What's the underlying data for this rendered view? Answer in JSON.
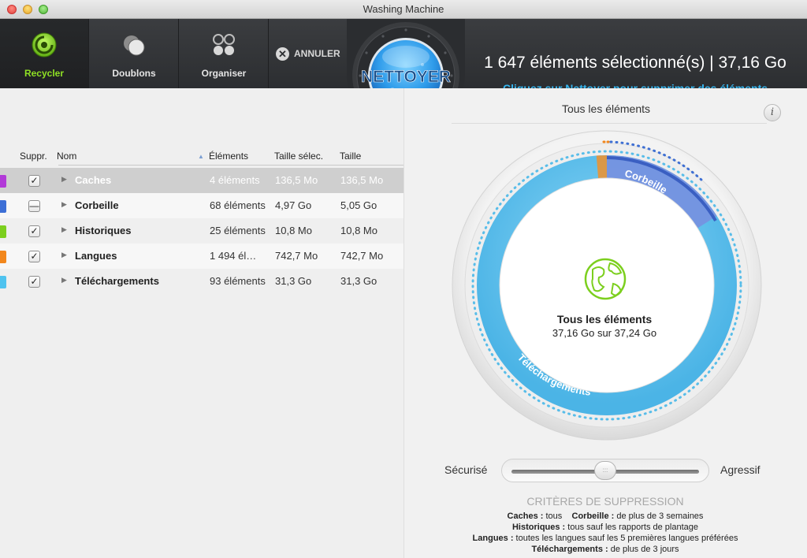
{
  "window": {
    "title": "Washing Machine"
  },
  "toolbar": {
    "tabs": [
      {
        "label": "Recycler",
        "icon": "recycle-icon",
        "active": true
      },
      {
        "label": "Doublons",
        "icon": "duplicates-icon",
        "active": false
      },
      {
        "label": "Organiser",
        "icon": "organize-icon",
        "active": false
      }
    ],
    "cancel_label": "ANNULER",
    "clean_label": "NETTOYER",
    "summary": "1 647 éléments sélectionné(s) | 37,16 Go",
    "hint": "Cliquez sur Nettoyer pour supprimer des éléments"
  },
  "table": {
    "headers": {
      "suppr": "Suppr.",
      "name": "Nom",
      "elements": "Éléments",
      "selected_size": "Taille sélec.",
      "size": "Taille"
    },
    "sort_indicator": "▲",
    "rows": [
      {
        "name": "Caches",
        "elements": "4 éléments",
        "selected_size": "136,5 Mo",
        "size": "136,5 Mo",
        "check": "✓",
        "color": "#b23ad8"
      },
      {
        "name": "Corbeille",
        "elements": "68 éléments",
        "selected_size": "4,97 Go",
        "size": "5,05 Go",
        "check": "—",
        "color": "#3d6fd6"
      },
      {
        "name": "Historiques",
        "elements": "25 éléments",
        "selected_size": "10,8 Mo",
        "size": "10,8 Mo",
        "check": "✓",
        "color": "#7ccf1e"
      },
      {
        "name": "Langues",
        "elements": "1 494 él…",
        "selected_size": "742,7 Mo",
        "size": "742,7 Mo",
        "check": "✓",
        "color": "#f2871c"
      },
      {
        "name": "Téléchargements",
        "elements": "93 éléments",
        "selected_size": "31,3 Go",
        "size": "31,3 Go",
        "check": "✓",
        "color": "#4fc3ef"
      }
    ]
  },
  "panel": {
    "title": "Tous les éléments",
    "info_label": "i",
    "center_title": "Tous les éléments",
    "center_sub": "37,16 Go sur 37,24 Go",
    "ring_labels": {
      "trash": "Corbeille",
      "downloads": "Téléchargements"
    },
    "slider": {
      "left": "Sécurisé",
      "right": "Agressif",
      "grip": ":::",
      "level": 0.5
    },
    "criteria_title": "CRITÈRES DE SUPPRESSION",
    "criteria": [
      [
        {
          "k": "Caches :",
          "v": " tous"
        },
        {
          "k": "Corbeille :",
          "v": " de plus de 3 semaines"
        }
      ],
      [
        {
          "k": "Historiques :",
          "v": " tous sauf les rapports de plantage"
        }
      ],
      [
        {
          "k": "Langues :",
          "v": " toutes les langues sauf les 5 premières langues préférées"
        }
      ],
      [
        {
          "k": "Téléchargements :",
          "v": " de plus de 3 jours"
        }
      ]
    ]
  },
  "colors": {
    "accent_green": "#8fe024",
    "hint_blue": "#36b6ef",
    "ring_blue": "#55bdea",
    "trash_blue": "#6c86de",
    "lang_orange": "#f2871c"
  }
}
